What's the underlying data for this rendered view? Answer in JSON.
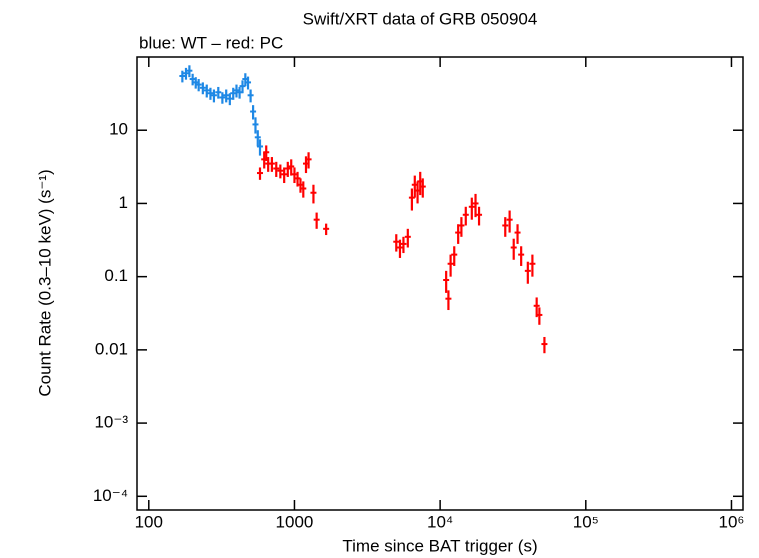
{
  "chart_data": {
    "type": "scatter",
    "title": "Swift/XRT data of GRB 050904",
    "subtitle": "blue: WT – red: PC",
    "x_label": "Time since BAT trigger (s)",
    "y_label": "Count Rate (0.3–10 keV) (s⁻¹)",
    "log_x": true,
    "log_y": true,
    "xlim": [
      83,
      1200000
    ],
    "ylim": [
      6.5e-05,
      100
    ],
    "xticks": [
      100,
      1000,
      {
        "value": 10000,
        "label": "10⁴"
      },
      {
        "value": 100000,
        "label": "10⁵"
      },
      {
        "value": 1000000,
        "label": "10⁶"
      }
    ],
    "yticks": [
      10,
      1,
      0.1,
      0.01,
      {
        "value": 0.001,
        "label": "10⁻³"
      },
      {
        "value": 0.0001,
        "label": "10⁻⁴"
      }
    ],
    "series": [
      {
        "name": "WT",
        "color": "#1e88e5",
        "x": [
          170,
          180,
          190,
          200,
          210,
          220,
          235,
          250,
          265,
          280,
          300,
          320,
          340,
          360,
          380,
          400,
          420,
          440,
          460,
          480,
          500,
          520,
          540,
          560,
          580
        ],
        "values": [
          55,
          60,
          65,
          50,
          45,
          42,
          38,
          35,
          32,
          30,
          33,
          28,
          30,
          27,
          32,
          35,
          33,
          40,
          50,
          45,
          30,
          18,
          12,
          8,
          6
        ],
        "errors": [
          10,
          11,
          12,
          9,
          8,
          8,
          7,
          7,
          6,
          6,
          6,
          5,
          6,
          5,
          6,
          7,
          6,
          8,
          10,
          9,
          6,
          4,
          3,
          2,
          1.5
        ]
      },
      {
        "name": "PC",
        "color": "#ff0000",
        "x": [
          580,
          620,
          640,
          660,
          700,
          750,
          800,
          850,
          900,
          950,
          1000,
          1050,
          1100,
          1150,
          1200,
          1250,
          1350,
          1420,
          1650,
          5000,
          5300,
          5600,
          6000,
          6400,
          6700,
          7000,
          7300,
          7600,
          11000,
          11400,
          11800,
          12500,
          13300,
          14000,
          15000,
          16500,
          17500,
          18500,
          28000,
          30000,
          32000,
          34000,
          36000,
          40000,
          43000,
          46000,
          48000,
          52000
        ],
        "values": [
          2.6,
          4,
          5,
          3.5,
          3.5,
          3,
          2.8,
          2.5,
          3,
          3.2,
          2.5,
          2.2,
          1.8,
          1.6,
          3.5,
          4,
          1.4,
          0.6,
          0.45,
          0.3,
          0.25,
          0.28,
          0.35,
          1.2,
          1.8,
          1.5,
          2,
          1.7,
          0.09,
          0.05,
          0.15,
          0.2,
          0.4,
          0.5,
          0.7,
          0.9,
          1,
          0.7,
          0.5,
          0.6,
          0.25,
          0.4,
          0.2,
          0.12,
          0.15,
          0.04,
          0.03,
          0.012
        ],
        "errors": [
          0.5,
          1,
          1.2,
          0.8,
          0.8,
          0.7,
          0.6,
          0.6,
          0.7,
          0.8,
          0.6,
          0.5,
          0.4,
          0.4,
          0.9,
          1,
          0.4,
          0.15,
          0.08,
          0.08,
          0.07,
          0.07,
          0.1,
          0.4,
          0.6,
          0.5,
          0.7,
          0.5,
          0.03,
          0.015,
          0.05,
          0.06,
          0.12,
          0.15,
          0.2,
          0.3,
          0.35,
          0.2,
          0.15,
          0.2,
          0.08,
          0.12,
          0.06,
          0.04,
          0.05,
          0.012,
          0.008,
          0.003
        ]
      }
    ]
  }
}
